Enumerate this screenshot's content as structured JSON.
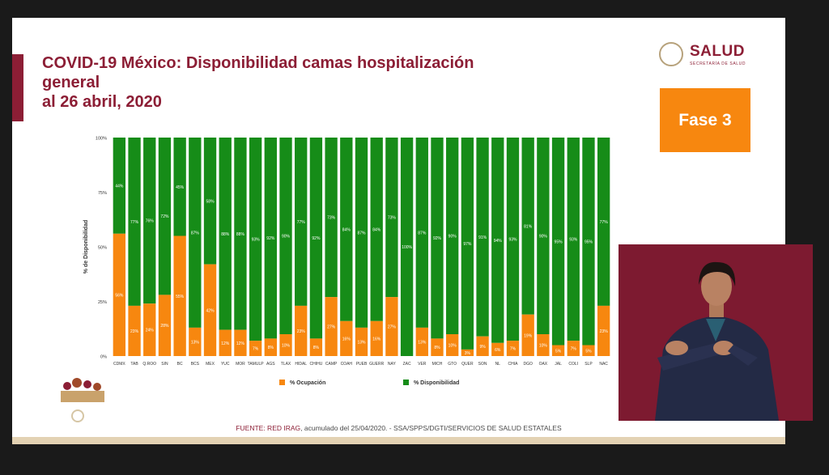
{
  "slide": {
    "title_lines": [
      "COVID-19 México: Disponibilidad camas hospitalización",
      "general",
      "al 26 abril, 2020"
    ],
    "logo_text": "SALUD",
    "logo_subtext": "SECRETARÍA DE SALUD",
    "phase_badge": "Fase 3",
    "source_prefix": "FUENTE: RED IRAG",
    "source_rest": ", acumulado del 25/04/2020. -  SSA/SPPS/DGTI/SERVICIOS DE SALUD ESTATALES"
  },
  "colors": {
    "brand": "#8c1e35",
    "occupancy": "#f7870f",
    "availability": "#168c18",
    "badge": "#f7870f"
  },
  "chart_data": {
    "type": "bar",
    "stacked": true,
    "percent": true,
    "categories": [
      "CDMX",
      "TAB",
      "Q.ROO",
      "SIN",
      "BC",
      "BCS",
      "MEX",
      "YUC",
      "MOR",
      "TAMULP",
      "AGS",
      "TLAX",
      "HIDAL",
      "CHIHU",
      "CAMP",
      "COAH",
      "PUEB",
      "GUERR",
      "NAY",
      "ZAC",
      "VER",
      "MICH",
      "GTO",
      "QUER",
      "SON",
      "NL",
      "CHIA",
      "DGO",
      "OAX",
      "JAL",
      "COLI",
      "SLP",
      "NAC"
    ],
    "series": [
      {
        "name": "% Ocupación",
        "values": [
          56,
          23,
          24,
          28,
          55,
          13,
          42,
          12,
          12,
          7,
          8,
          10,
          23,
          8,
          27,
          16,
          13,
          16,
          27,
          0,
          13,
          8,
          10,
          3,
          9,
          6,
          7,
          19,
          10,
          5,
          7,
          5,
          23
        ]
      },
      {
        "name": "% Disponibilidad",
        "values": [
          44,
          77,
          76,
          72,
          45,
          87,
          58,
          88,
          88,
          93,
          92,
          90,
          77,
          92,
          73,
          84,
          87,
          84,
          73,
          100,
          87,
          92,
          90,
          97,
          91,
          94,
          93,
          81,
          90,
          95,
          93,
          95,
          77
        ]
      }
    ],
    "occupancy_labels": [
      "56%",
      "23%",
      "24%",
      "28%",
      "55%",
      "13%",
      "42%",
      "12%",
      "12%",
      "7%",
      "8%",
      "10%",
      "23%",
      "8%",
      "27%",
      "16%",
      "13%",
      "16%",
      "27%",
      "",
      "13%",
      "8%",
      "10%",
      "3%",
      "9%",
      "6%",
      "7%",
      "19%",
      "10%",
      "5%",
      "7%",
      "5%",
      "23%"
    ],
    "availability_labels": [
      "44%",
      "77%",
      "76%",
      "72%",
      "45%",
      "87%",
      "58%",
      "88%",
      "88%",
      "93%",
      "92%",
      "90%",
      "77%",
      "92%",
      "73%",
      "84%",
      "87%",
      "84%",
      "73%",
      "100%",
      "87%",
      "92%",
      "90%",
      "97%",
      "91%",
      "94%",
      "93%",
      "81%",
      "90%",
      "95%",
      "93%",
      "95%",
      "77%"
    ],
    "ylabel": "% de Disponibilidad",
    "yticks": [
      "0%",
      "25%",
      "50%",
      "75%",
      "100%"
    ],
    "ylim": [
      0,
      100
    ],
    "legend": [
      "% Ocupación",
      "% Disponibilidad"
    ],
    "legend_position": "bottom"
  }
}
